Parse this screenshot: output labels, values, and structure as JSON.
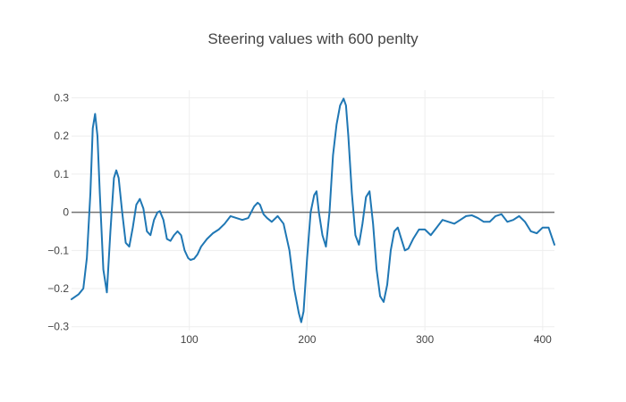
{
  "chart_data": {
    "type": "line",
    "title": "Steering values with 600 penlty",
    "xlabel": "",
    "ylabel": "",
    "xlim": [
      0,
      410
    ],
    "ylim": [
      -0.31,
      0.32
    ],
    "grid": true,
    "legend": "none",
    "x_ticks": [
      100,
      200,
      300,
      400
    ],
    "y_ticks": [
      -0.3,
      -0.2,
      -0.1,
      0,
      0.1,
      0.2,
      0.3
    ],
    "y_tick_labels": [
      "−0.3",
      "−0.2",
      "−0.1",
      "0",
      "0.1",
      "0.2",
      "0.3"
    ],
    "colors": {
      "series": "#1f77b4",
      "zero_line": "#444444",
      "grid": "#eeeeee"
    },
    "series": [
      {
        "x": [
          0,
          6,
          10,
          13,
          16,
          18,
          20,
          22,
          24,
          27,
          30,
          33,
          36,
          38,
          40,
          43,
          46,
          49,
          52,
          55,
          58,
          61,
          64,
          67,
          70,
          73,
          75,
          78,
          81,
          84,
          87,
          90,
          93,
          96,
          99,
          101,
          104,
          107,
          110,
          115,
          120,
          125,
          130,
          135,
          140,
          145,
          150,
          155,
          158,
          160,
          163,
          166,
          170,
          175,
          180,
          185,
          189,
          193,
          195,
          197,
          200,
          203,
          206,
          208,
          210,
          213,
          216,
          219,
          222,
          225,
          228,
          231,
          233,
          235,
          238,
          241,
          244,
          247,
          250,
          253,
          256,
          259,
          262,
          265,
          268,
          271,
          274,
          277,
          280,
          283,
          286,
          290,
          295,
          300,
          305,
          310,
          315,
          320,
          325,
          330,
          335,
          340,
          345,
          350,
          355,
          360,
          365,
          370,
          375,
          380,
          385,
          390,
          395,
          400,
          405,
          410
        ],
        "values": [
          -0.228,
          -0.215,
          -0.2,
          -0.12,
          0.05,
          0.22,
          0.258,
          0.2,
          0.05,
          -0.15,
          -0.21,
          -0.05,
          0.09,
          0.11,
          0.09,
          0.0,
          -0.08,
          -0.09,
          -0.04,
          0.02,
          0.035,
          0.01,
          -0.05,
          -0.06,
          -0.02,
          0.0,
          0.003,
          -0.02,
          -0.07,
          -0.075,
          -0.06,
          -0.05,
          -0.06,
          -0.1,
          -0.12,
          -0.125,
          -0.122,
          -0.11,
          -0.09,
          -0.07,
          -0.055,
          -0.045,
          -0.03,
          -0.01,
          -0.015,
          -0.02,
          -0.015,
          0.015,
          0.025,
          0.02,
          -0.005,
          -0.015,
          -0.025,
          -0.01,
          -0.03,
          -0.1,
          -0.2,
          -0.265,
          -0.288,
          -0.26,
          -0.12,
          0.0,
          0.045,
          0.055,
          0.0,
          -0.06,
          -0.09,
          0.0,
          0.15,
          0.23,
          0.28,
          0.298,
          0.28,
          0.2,
          0.05,
          -0.06,
          -0.085,
          -0.03,
          0.04,
          0.055,
          -0.03,
          -0.15,
          -0.22,
          -0.235,
          -0.19,
          -0.1,
          -0.05,
          -0.04,
          -0.07,
          -0.1,
          -0.095,
          -0.07,
          -0.045,
          -0.045,
          -0.06,
          -0.04,
          -0.02,
          -0.025,
          -0.03,
          -0.02,
          -0.01,
          -0.008,
          -0.015,
          -0.025,
          -0.025,
          -0.01,
          -0.005,
          -0.025,
          -0.02,
          -0.01,
          -0.025,
          -0.05,
          -0.055,
          -0.04,
          -0.04,
          -0.085
        ]
      }
    ]
  }
}
